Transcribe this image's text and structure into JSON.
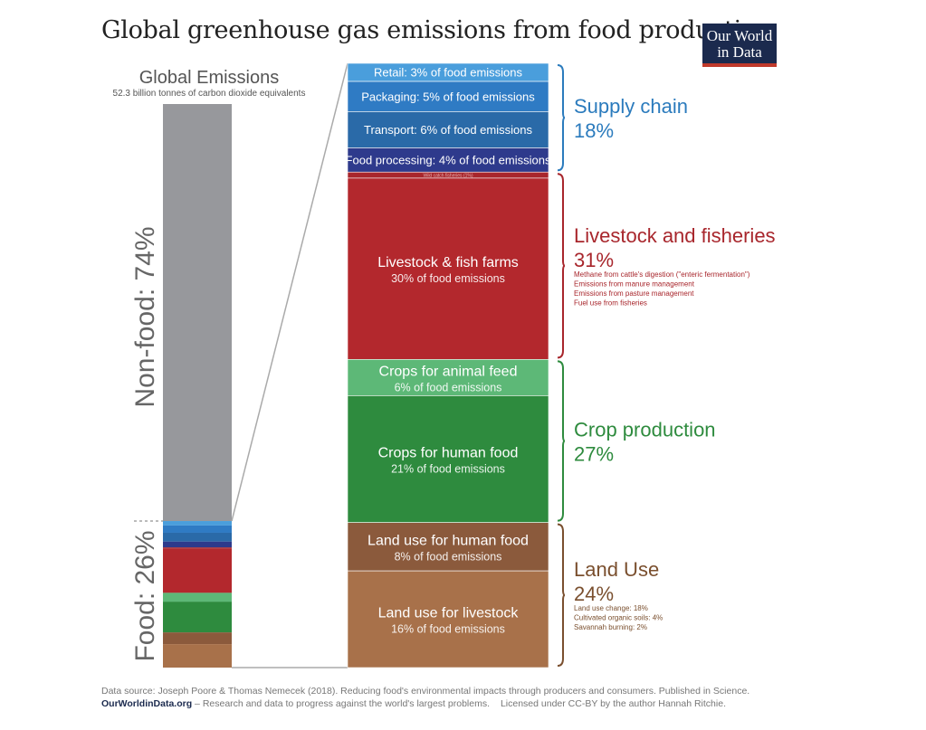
{
  "title": "Global greenhouse gas emissions from food production",
  "logo": {
    "line1": "Our World",
    "line2": "in Data"
  },
  "chart_data": {
    "type": "bar",
    "left_bar": {
      "title": "Global Emissions",
      "subtitle": "52.3 billion tonnes of carbon dioxide equivalents",
      "nonfood_label": "Non-food: 74%",
      "food_label": "Food: 26%",
      "nonfood_share": 74,
      "food_share": 26
    },
    "segments": [
      {
        "label": "Retail: 3% of food emissions",
        "value": 3,
        "color": "#4a9edc",
        "text_color": "#ffffff"
      },
      {
        "label": "Packaging: 5% of food emissions",
        "value": 5,
        "color": "#2f7bc4",
        "text_color": "#ffffff"
      },
      {
        "label": "Transport: 6% of food emissions",
        "value": 6,
        "color": "#2a6aa8",
        "text_color": "#ffffff"
      },
      {
        "label": "Food processing: 4% of food emissions",
        "value": 4,
        "color": "#2e3a8c",
        "text_color": "#ffffff"
      },
      {
        "label": "Wild catch fisheries (1%)",
        "value": 1,
        "color": "#a8262c",
        "text_color": "#e6b0b0"
      },
      {
        "label": "Livestock & fish farms",
        "sublabel": "30% of food emissions",
        "value": 30,
        "color": "#b3282d",
        "text_color": "#ffffff"
      },
      {
        "label": "Crops for animal feed",
        "sublabel": "6% of food emissions",
        "value": 6,
        "color": "#5db877",
        "text_color": "#ffffff"
      },
      {
        "label": "Crops for human food",
        "sublabel": "21% of food emissions",
        "value": 21,
        "color": "#2e8b3e",
        "text_color": "#ffffff"
      },
      {
        "label": "Land use for human food",
        "sublabel": "8% of food emissions",
        "value": 8,
        "color": "#8b5a3c",
        "text_color": "#ffffff"
      },
      {
        "label": "Land use for livestock",
        "sublabel": "16% of food emissions",
        "value": 16,
        "color": "#a8714a",
        "text_color": "#ffffff"
      }
    ],
    "groups": [
      {
        "name": "Supply chain",
        "pct": "18%",
        "color": "#2b7bbd",
        "from": 0,
        "to": 3,
        "notes": []
      },
      {
        "name": "Livestock and fisheries",
        "pct": "31%",
        "color": "#a8262c",
        "from": 4,
        "to": 5,
        "notes": [
          "Methane from cattle's digestion (\"enteric fermentation\")",
          "Emissions from manure management",
          "Emissions from pasture management",
          "Fuel use from fisheries"
        ]
      },
      {
        "name": "Crop production",
        "pct": "27%",
        "color": "#2e8b3e",
        "from": 6,
        "to": 7,
        "notes": []
      },
      {
        "name": "Land Use",
        "pct": "24%",
        "color": "#7a4f2e",
        "from": 8,
        "to": 9,
        "notes": [
          "Land use change: 18%",
          "Cultivated organic soils: 4%",
          "Savannah burning: 2%"
        ]
      }
    ]
  },
  "footer": {
    "source": "Data source: Joseph Poore & Thomas Nemecek (2018). Reducing food's environmental impacts through producers and consumers. Published in Science.",
    "site": "OurWorldinData.org",
    "tagline": " – Research and data to progress against the world's largest problems.",
    "license": "Licensed under CC-BY by the author Hannah Ritchie."
  }
}
